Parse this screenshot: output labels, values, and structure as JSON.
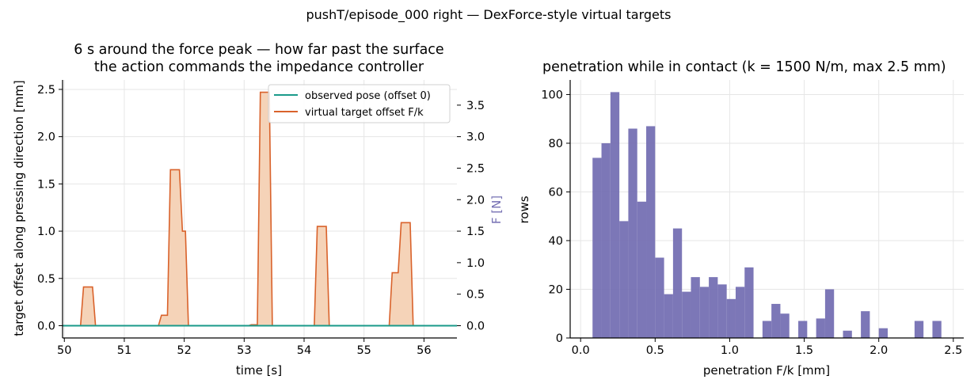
{
  "suptitle": "pushT/episode_000 right — DexForce-style virtual targets",
  "colors": {
    "observed": "#1a9a8a",
    "virtual": "#d9622b",
    "fill": "#f5d3b8",
    "bars": "#7570b3",
    "f_label": "#7570b3",
    "grid": "#e6e6e6"
  },
  "chart_data": [
    {
      "type": "line",
      "title_line1": "6 s around the force peak — how far past the surface",
      "title_line2": "the action commands the impedance controller",
      "xlabel": "time [s]",
      "ylabel": "target offset along pressing direction [mm]",
      "y2label": "F [N]",
      "xlim": [
        49.97,
        56.55
      ],
      "ylim": [
        -0.13,
        2.6
      ],
      "y2lim": [
        -0.195,
        3.9
      ],
      "xticks": [
        "50",
        "51",
        "52",
        "53",
        "54",
        "55",
        "56"
      ],
      "yticks": [
        "0.0",
        "0.5",
        "1.0",
        "1.5",
        "2.0",
        "2.5"
      ],
      "y2ticks": [
        "0.0",
        "0.5",
        "1.0",
        "1.5",
        "2.0",
        "2.5",
        "3.0",
        "3.5"
      ],
      "grid": true,
      "legend_position": "top-right",
      "series": [
        {
          "name": "observed pose (offset 0)",
          "x": [
            49.97,
            56.55
          ],
          "y": [
            0,
            0
          ]
        },
        {
          "name": "virtual target offset F/k",
          "x": [
            49.97,
            50.27,
            50.32,
            50.47,
            50.52,
            51.57,
            51.62,
            51.72,
            51.77,
            51.92,
            51.97,
            52.02,
            52.07,
            52.12,
            53.07,
            53.12,
            53.22,
            53.27,
            53.42,
            53.47,
            54.17,
            54.22,
            54.37,
            54.42,
            55.42,
            55.47,
            55.52,
            55.57,
            55.62,
            55.72,
            55.77,
            55.82,
            56.55
          ],
          "y": [
            0,
            0,
            0.41,
            0.41,
            0,
            0,
            0.11,
            0.11,
            1.65,
            1.65,
            1.0,
            1.0,
            0,
            0,
            0,
            0.01,
            0.01,
            2.47,
            2.47,
            0,
            0,
            1.05,
            1.05,
            0,
            0,
            0.56,
            0.56,
            0.56,
            1.09,
            1.09,
            1.09,
            0,
            0
          ]
        }
      ]
    },
    {
      "type": "bar",
      "title": "penetration while in contact (k = 1500 N/m, max 2.5 mm)",
      "xlabel": "penetration F/k [mm]",
      "ylabel": "rows",
      "xlim": [
        -0.07,
        2.57
      ],
      "ylim": [
        0,
        106
      ],
      "xticks": [
        "0.0",
        "0.5",
        "1.0",
        "1.5",
        "2.0",
        "2.5"
      ],
      "yticks": [
        "0",
        "20",
        "40",
        "60",
        "80",
        "100"
      ],
      "grid": true,
      "bin_edges": [
        0.08,
        0.14,
        0.2,
        0.26,
        0.32,
        0.38,
        0.44,
        0.5,
        0.56,
        0.62,
        0.68,
        0.74,
        0.8,
        0.86,
        0.92,
        0.98,
        1.04,
        1.1,
        1.16,
        1.22,
        1.28,
        1.34,
        1.4,
        1.46,
        1.52,
        1.58,
        1.64,
        1.7,
        1.76,
        1.82,
        1.88,
        1.94,
        2.0,
        2.06,
        2.12,
        2.18,
        2.24,
        2.3,
        2.36,
        2.42,
        2.48
      ],
      "values": [
        74,
        80,
        101,
        48,
        86,
        56,
        87,
        33,
        18,
        45,
        19,
        25,
        21,
        25,
        22,
        16,
        21,
        29,
        0,
        7,
        14,
        10,
        0,
        7,
        0,
        8,
        20,
        0,
        3,
        0,
        11,
        0,
        4,
        0,
        0,
        0,
        7,
        0,
        7,
        0
      ]
    }
  ]
}
